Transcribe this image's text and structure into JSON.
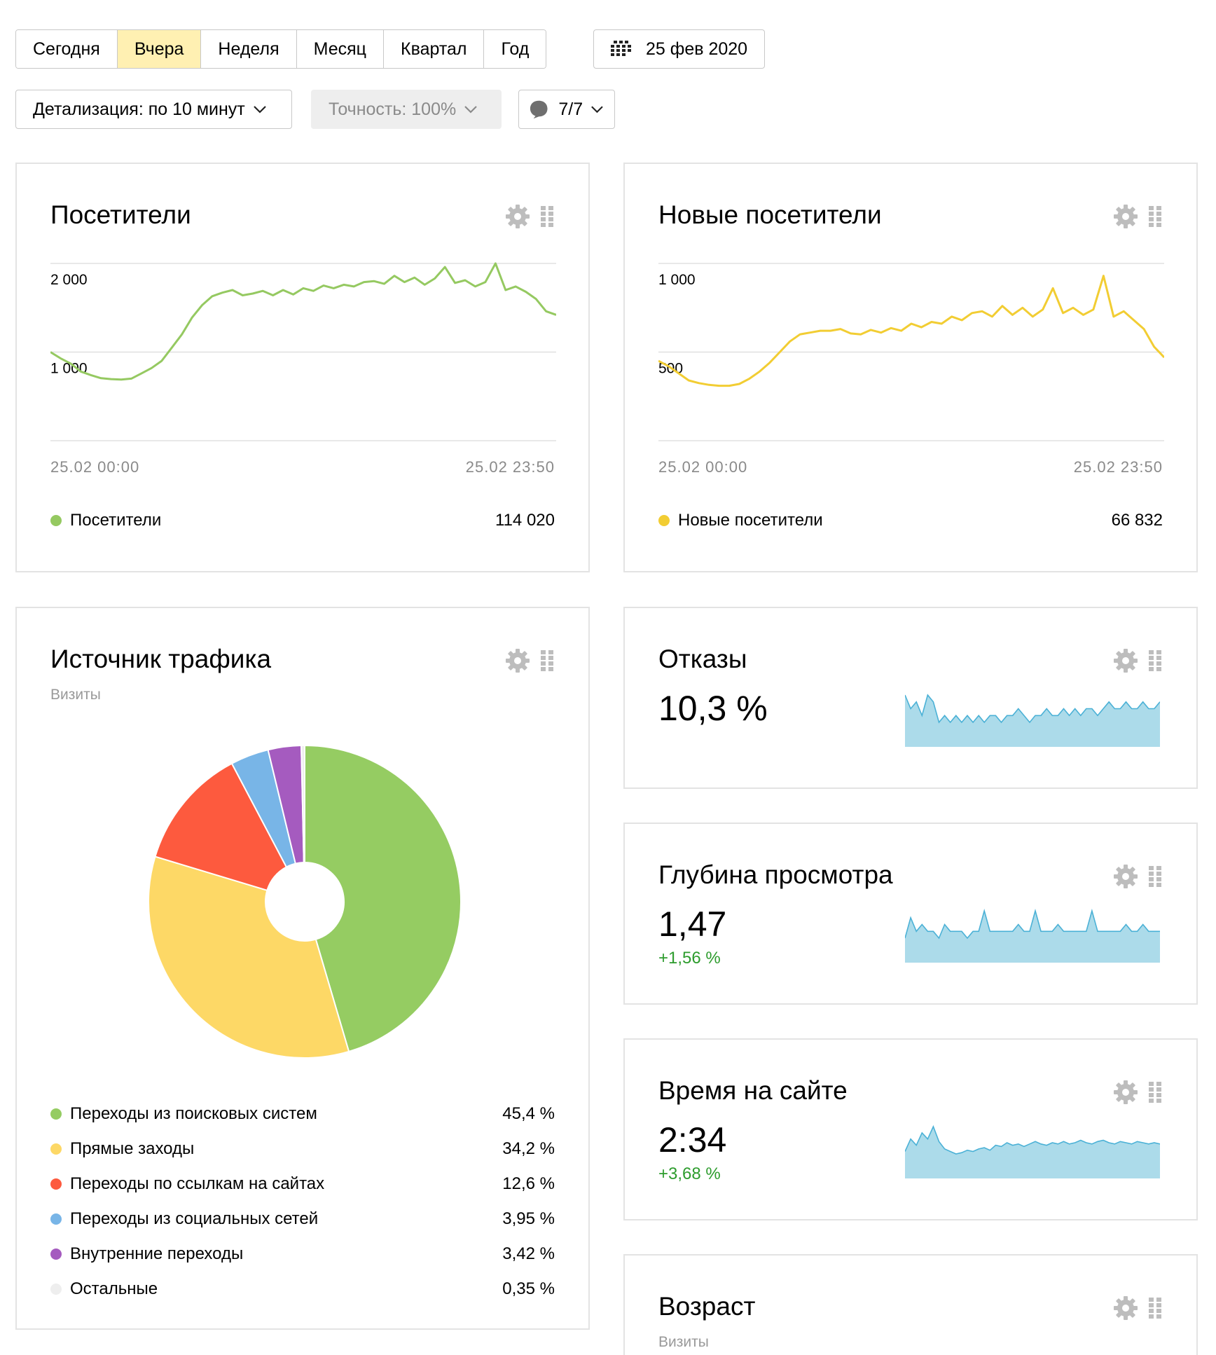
{
  "period_tabs": [
    {
      "label": "Сегодня",
      "active": false
    },
    {
      "label": "Вчера",
      "active": true
    },
    {
      "label": "Неделя",
      "active": false
    },
    {
      "label": "Месяц",
      "active": false
    },
    {
      "label": "Квартал",
      "active": false
    },
    {
      "label": "Год",
      "active": false
    }
  ],
  "date_button": {
    "label": "25 фев 2020",
    "icon": "calendar-icon"
  },
  "detail_select": {
    "label": "Детализация: по 10 минут"
  },
  "accuracy_select": {
    "label": "Точность: 100%",
    "disabled": true
  },
  "notes_select": {
    "label": "7/7",
    "icon": "comment-icon"
  },
  "colors": {
    "visitors": "#95c961",
    "new_visitors": "#f2cd33",
    "spark_fill": "#acdbea",
    "spark_line": "#4bb1d6",
    "positive": "#2d9c2d",
    "active_tab": "#fff0b2"
  },
  "visitors_card": {
    "title": "Посетители",
    "legend_label": "Посетители",
    "total": "114 020",
    "x_start": "25.02 00:00",
    "x_end": "25.02 23:50",
    "y_ticks": [
      "2 000",
      "1 000"
    ]
  },
  "new_visitors_card": {
    "title": "Новые посетители",
    "legend_label": "Новые посетители",
    "total": "66 832",
    "x_start": "25.02 00:00",
    "x_end": "25.02 23:50",
    "y_ticks": [
      "1 000",
      "500"
    ]
  },
  "traffic_card": {
    "title": "Источник трафика",
    "subtitle": "Визиты",
    "items": [
      {
        "label": "Переходы из поисковых систем",
        "value": "45,4 %",
        "color": "#95cc62"
      },
      {
        "label": "Прямые заходы",
        "value": "34,2 %",
        "color": "#fdd866"
      },
      {
        "label": "Переходы по ссылкам на сайтах",
        "value": "12,6 %",
        "color": "#fd5a3e"
      },
      {
        "label": "Переходы из социальных сетей",
        "value": "3,95 %",
        "color": "#78b5e7"
      },
      {
        "label": "Внутренние переходы",
        "value": "3,42 %",
        "color": "#a55bbf"
      },
      {
        "label": "Остальные",
        "value": "0,35 %",
        "color": "#eeeeee"
      }
    ]
  },
  "bounce_card": {
    "title": "Отказы",
    "value": "10,3 %"
  },
  "depth_card": {
    "title": "Глубина просмотра",
    "value": "1,47",
    "delta": "+1,56 %"
  },
  "time_card": {
    "title": "Время на сайте",
    "value": "2:34",
    "delta": "+3,68 %"
  },
  "age_card": {
    "title": "Возраст",
    "subtitle": "Визиты"
  },
  "chart_data": [
    {
      "type": "line",
      "title": "Посетители",
      "x_label_start": "25.02 00:00",
      "x_label_end": "25.02 23:50",
      "ylim": [
        0,
        2000
      ],
      "series": [
        {
          "name": "Посетители",
          "values": [
            1000,
            930,
            870,
            780,
            740,
            705,
            695,
            690,
            700,
            760,
            820,
            900,
            1050,
            1200,
            1390,
            1530,
            1630,
            1670,
            1700,
            1640,
            1660,
            1690,
            1640,
            1700,
            1650,
            1720,
            1690,
            1750,
            1720,
            1760,
            1740,
            1790,
            1800,
            1770,
            1860,
            1790,
            1840,
            1760,
            1830,
            1960,
            1780,
            1810,
            1740,
            1790,
            2000,
            1700,
            1740,
            1680,
            1600,
            1460,
            1420
          ]
        }
      ]
    },
    {
      "type": "line",
      "title": "Новые посетители",
      "x_label_start": "25.02 00:00",
      "x_label_end": "25.02 23:50",
      "ylim": [
        0,
        1000
      ],
      "series": [
        {
          "name": "Новые посетители",
          "values": [
            450,
            420,
            380,
            340,
            325,
            315,
            310,
            310,
            320,
            350,
            390,
            440,
            500,
            560,
            600,
            610,
            620,
            620,
            630,
            605,
            600,
            625,
            610,
            635,
            620,
            660,
            640,
            670,
            660,
            700,
            680,
            720,
            730,
            700,
            760,
            710,
            750,
            700,
            740,
            860,
            720,
            750,
            710,
            740,
            930,
            700,
            730,
            680,
            630,
            530,
            470
          ]
        }
      ]
    },
    {
      "type": "pie",
      "title": "Источник трафика",
      "categories": [
        "Переходы из поисковых систем",
        "Прямые заходы",
        "Переходы по ссылкам на сайтах",
        "Переходы из социальных сетей",
        "Внутренние переходы",
        "Остальные"
      ],
      "values": [
        45.4,
        34.2,
        12.6,
        3.95,
        3.42,
        0.35
      ]
    },
    {
      "type": "area",
      "title": "Отказы",
      "series": [
        {
          "name": "",
          "values": [
            14,
            12,
            13,
            11,
            14,
            13,
            10,
            11,
            10,
            11,
            10,
            11,
            10,
            11,
            10,
            11,
            11,
            10,
            11,
            11,
            12,
            11,
            10,
            11,
            11,
            12,
            11,
            11,
            12,
            11,
            12,
            11,
            12,
            12,
            11,
            12,
            13,
            12,
            12,
            13,
            12,
            12,
            13,
            12,
            12,
            13
          ]
        }
      ]
    },
    {
      "type": "area",
      "title": "Глубина просмотра",
      "series": [
        {
          "name": "",
          "values": [
            1.46,
            1.49,
            1.47,
            1.48,
            1.47,
            1.47,
            1.46,
            1.48,
            1.47,
            1.47,
            1.47,
            1.46,
            1.47,
            1.47,
            1.5,
            1.47,
            1.47,
            1.47,
            1.47,
            1.47,
            1.48,
            1.47,
            1.47,
            1.5,
            1.47,
            1.47,
            1.47,
            1.48,
            1.47,
            1.47,
            1.47,
            1.47,
            1.47,
            1.5,
            1.47,
            1.47,
            1.47,
            1.47,
            1.47,
            1.48,
            1.47,
            1.47,
            1.48,
            1.47,
            1.47,
            1.47
          ]
        }
      ]
    },
    {
      "type": "area",
      "title": "Время на сайте",
      "series": [
        {
          "name": "",
          "values": [
            140,
            150,
            145,
            155,
            150,
            160,
            148,
            142,
            140,
            138,
            139,
            141,
            140,
            142,
            143,
            141,
            145,
            144,
            147,
            145,
            146,
            144,
            146,
            148,
            146,
            145,
            147,
            146,
            148,
            146,
            147,
            149,
            147,
            146,
            148,
            149,
            147,
            146,
            148,
            147,
            146,
            148,
            147,
            146,
            147,
            146
          ]
        }
      ]
    }
  ]
}
